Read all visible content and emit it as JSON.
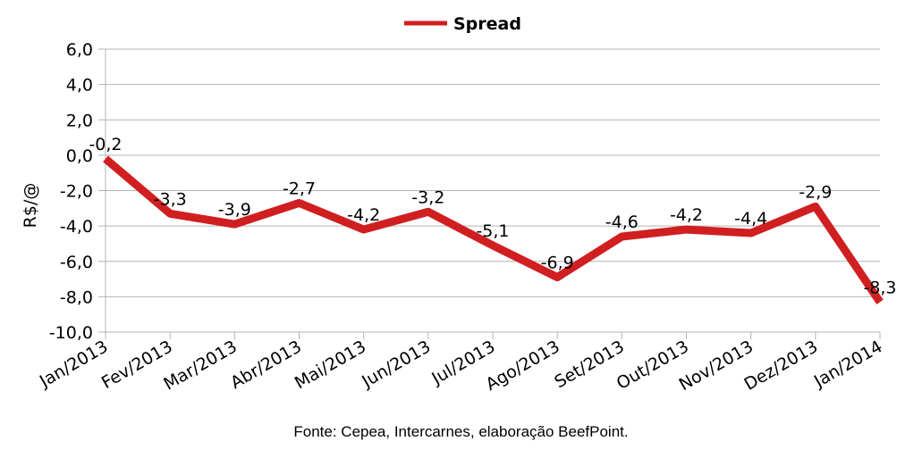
{
  "chart_data": {
    "type": "line",
    "categories": [
      "Jan/2013",
      "Fev/2013",
      "Mar/2013",
      "Abr/2013",
      "Mai/2013",
      "Jun/2013",
      "Jul/2013",
      "Ago/2013",
      "Set/2013",
      "Out/2013",
      "Nov/2013",
      "Dez/2013",
      "Jan/2014"
    ],
    "series": [
      {
        "name": "Spread",
        "color": "#d01f20",
        "values": [
          -0.2,
          -3.3,
          -3.9,
          -2.7,
          -4.2,
          -3.2,
          -5.1,
          -6.9,
          -4.6,
          -4.2,
          -4.4,
          -2.9,
          -8.3
        ],
        "value_labels": [
          "-0,2",
          "-3,3",
          "-3,9",
          "-2,7",
          "-4,2",
          "-3,2",
          "-5,1",
          "-6,9",
          "-4,6",
          "-4,2",
          "-4,4",
          "-2,9",
          "-8,3"
        ]
      }
    ],
    "ylabel": "R$/@",
    "ylim": [
      -10,
      6
    ],
    "yticks": [
      6,
      4,
      2,
      0,
      -2,
      -4,
      -6,
      -8,
      -10
    ],
    "ytick_labels": [
      "6,0",
      "4,0",
      "2,0",
      "0,0",
      "-2,0",
      "-4,0",
      "-6,0",
      "-8,0",
      "-10,0"
    ],
    "grid": true,
    "legend_position": "top"
  },
  "source": "Fonte: Cepea, Intercarnes, elaboração BeefPoint."
}
